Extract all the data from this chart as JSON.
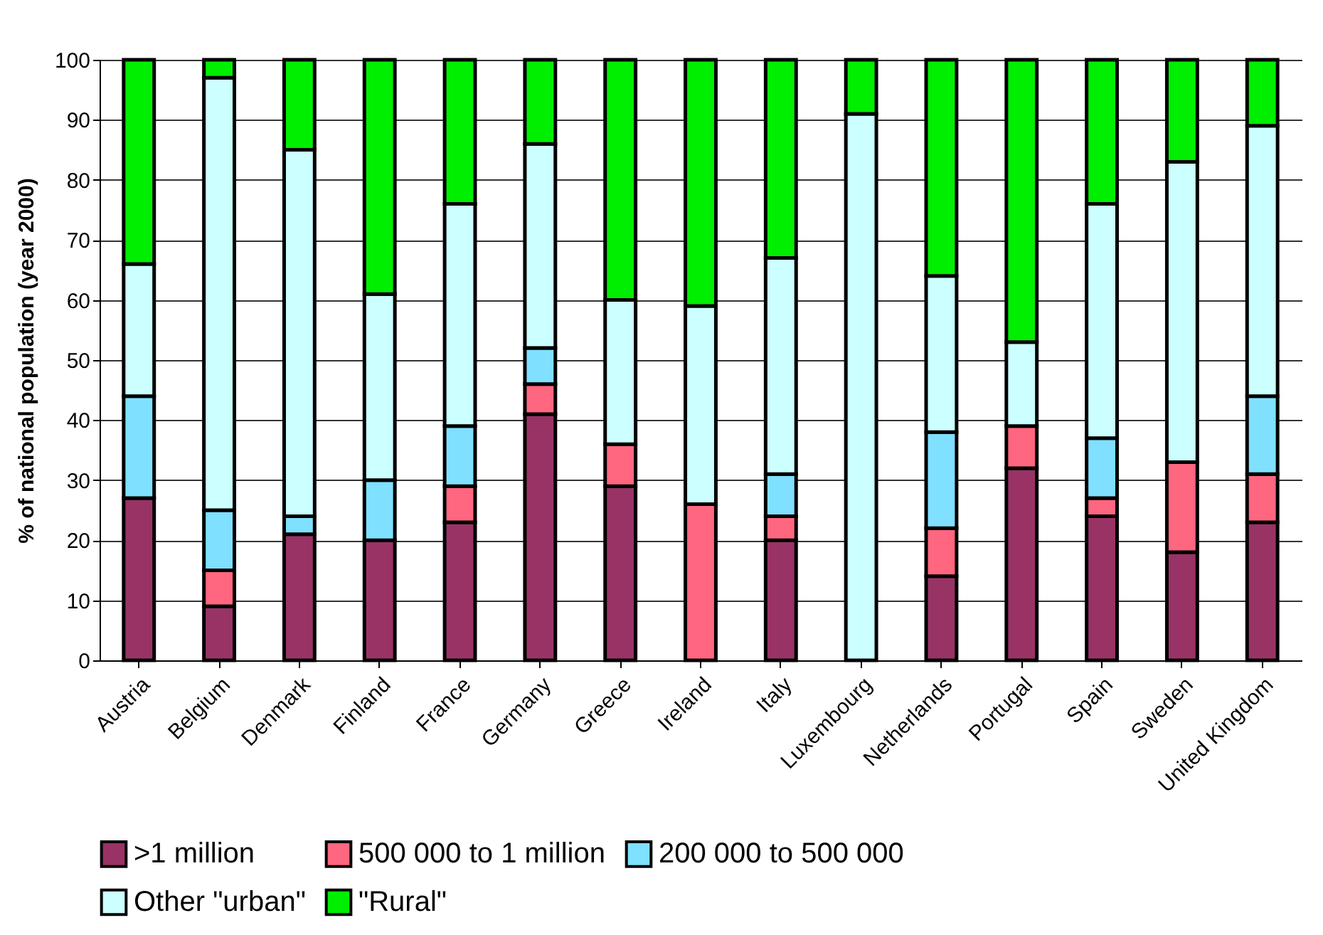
{
  "chart_data": {
    "type": "bar",
    "stacked": true,
    "ylabel": "% of national population (year 2000)",
    "categories": [
      "Austria",
      "Belgium",
      "Denmark",
      "Finland",
      "France",
      "Germany",
      "Greece",
      "Ireland",
      "Italy",
      "Luxembourg",
      "Netherlands",
      "Portugal",
      "Spain",
      "Sweden",
      "United Kingdom"
    ],
    "series": [
      {
        "name": ">1 million",
        "color": "#993366",
        "values": [
          27,
          9,
          21,
          20,
          23,
          41,
          29,
          0,
          20,
          0,
          14,
          32,
          24,
          18,
          23
        ]
      },
      {
        "name": "500 000 to 1 million",
        "color": "#ff6680",
        "values": [
          0,
          6,
          0,
          0,
          6,
          5,
          7,
          26,
          4,
          0,
          8,
          7,
          3,
          15,
          8
        ]
      },
      {
        "name": "200 000 to 500 000",
        "color": "#80e0ff",
        "values": [
          17,
          10,
          3,
          10,
          10,
          6,
          0,
          0,
          7,
          0,
          16,
          0,
          10,
          0,
          13
        ]
      },
      {
        "name": "Other \"urban\"",
        "color": "#ccffff",
        "values": [
          22,
          72,
          61,
          31,
          37,
          34,
          24,
          33,
          36,
          91,
          26,
          14,
          39,
          50,
          45
        ]
      },
      {
        "name": "\"Rural\"",
        "color": "#00ee00",
        "values": [
          34,
          3,
          15,
          39,
          24,
          14,
          40,
          41,
          33,
          9,
          36,
          47,
          24,
          17,
          11
        ]
      }
    ],
    "ylim": [
      0,
      100
    ],
    "yticks": [
      0,
      10,
      20,
      30,
      40,
      50,
      60,
      70,
      80,
      90,
      100
    ],
    "grid": "y",
    "legend": "bottom"
  }
}
